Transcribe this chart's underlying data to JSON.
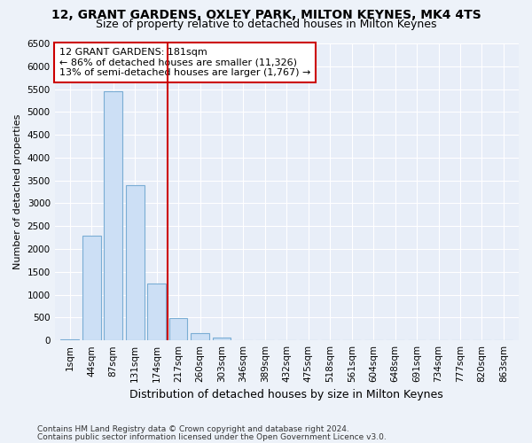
{
  "title1": "12, GRANT GARDENS, OXLEY PARK, MILTON KEYNES, MK4 4TS",
  "title2": "Size of property relative to detached houses in Milton Keynes",
  "xlabel": "Distribution of detached houses by size in Milton Keynes",
  "ylabel": "Number of detached properties",
  "categories": [
    "1sqm",
    "44sqm",
    "87sqm",
    "131sqm",
    "174sqm",
    "217sqm",
    "260sqm",
    "303sqm",
    "346sqm",
    "389sqm",
    "432sqm",
    "475sqm",
    "518sqm",
    "561sqm",
    "604sqm",
    "648sqm",
    "691sqm",
    "734sqm",
    "777sqm",
    "820sqm",
    "863sqm"
  ],
  "values": [
    30,
    2300,
    5450,
    3400,
    1250,
    480,
    160,
    60,
    10,
    3,
    1,
    0,
    0,
    0,
    0,
    0,
    0,
    0,
    0,
    0,
    0
  ],
  "bar_color": "#ccdff5",
  "bar_edge_color": "#7aadd4",
  "vline_color": "#cc0000",
  "vline_pos": 4.5,
  "annotation_text": "12 GRANT GARDENS: 181sqm\n← 86% of detached houses are smaller (11,326)\n13% of semi-detached houses are larger (1,767) →",
  "annotation_box_color": "white",
  "annotation_box_edge": "#cc0000",
  "ylim": [
    0,
    6500
  ],
  "yticks": [
    0,
    500,
    1000,
    1500,
    2000,
    2500,
    3000,
    3500,
    4000,
    4500,
    5000,
    5500,
    6000,
    6500
  ],
  "footer1": "Contains HM Land Registry data © Crown copyright and database right 2024.",
  "footer2": "Contains public sector information licensed under the Open Government Licence v3.0.",
  "bg_color": "#edf2f9",
  "plot_bg_color": "#e8eef8",
  "title1_fontsize": 10,
  "title2_fontsize": 9,
  "xlabel_fontsize": 9,
  "ylabel_fontsize": 8,
  "tick_fontsize": 7.5,
  "annotation_fontsize": 8,
  "footer_fontsize": 6.5
}
